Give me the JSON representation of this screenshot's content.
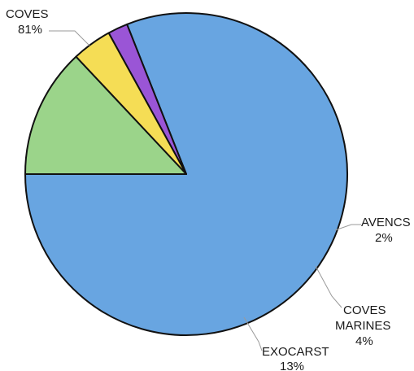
{
  "chart_data": {
    "type": "pie",
    "title": "",
    "start_angle_deg": 180,
    "direction": "counterclockwise",
    "slices": [
      {
        "label": "COVES",
        "pct_label": "81%",
        "value": 81,
        "color": "#68a5e1"
      },
      {
        "label": "AVENCS",
        "pct_label": "2%",
        "value": 2,
        "color": "#9a55d6"
      },
      {
        "label": "COVES MARINES",
        "pct_label": "4%",
        "value": 4,
        "color": "#f5dd55"
      },
      {
        "label": "EXOCARST",
        "pct_label": "13%",
        "value": 13,
        "color": "#9bd48a"
      }
    ],
    "legend": "none"
  }
}
